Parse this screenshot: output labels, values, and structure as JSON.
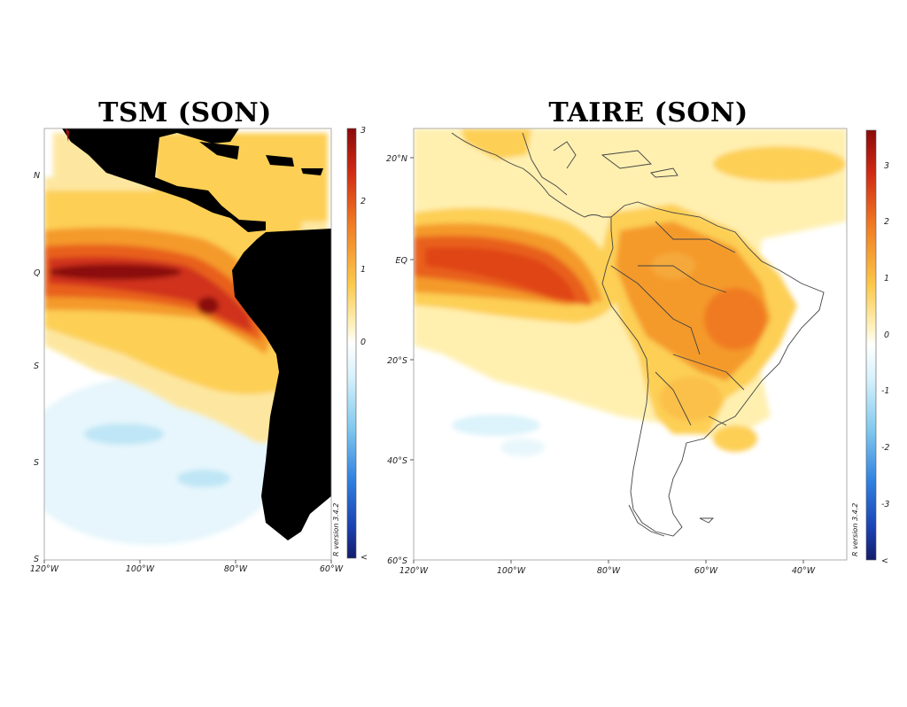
{
  "panels": [
    {
      "title": "TSM (SON)",
      "x_labels": [
        "120°W",
        "100°W",
        "80°W",
        "60°W"
      ],
      "y_labels": [
        "N",
        "Q",
        "S",
        "S",
        "S"
      ],
      "colorbar_labels": [
        "3",
        "2",
        "1",
        "0",
        "<"
      ],
      "credit": "R version 3.4.2"
    },
    {
      "title": "TAIRE (SON)",
      "x_labels": [
        "120°W",
        "100°W",
        "80°W",
        "60°W",
        "40°W"
      ],
      "y_labels": [
        "20°N",
        "EQ",
        "20°S",
        "40°S",
        "60°S"
      ],
      "colorbar_labels": [
        "3",
        "2",
        "1",
        "0",
        "-1",
        "-2",
        "-3",
        "<"
      ],
      "credit": "R version 3.4.2"
    }
  ],
  "colors": {
    "neg3": "#1a237e",
    "neg2": "#1e5bd8",
    "neg1": "#4fa8e8",
    "neg0": "#bfe6f6",
    "zero": "#ffffff",
    "pos0": "#fff0b0",
    "pos1": "#fdcf55",
    "pos2": "#f49a2c",
    "pos3": "#e0401b",
    "pos4": "#b3120e",
    "land": "#000000"
  }
}
